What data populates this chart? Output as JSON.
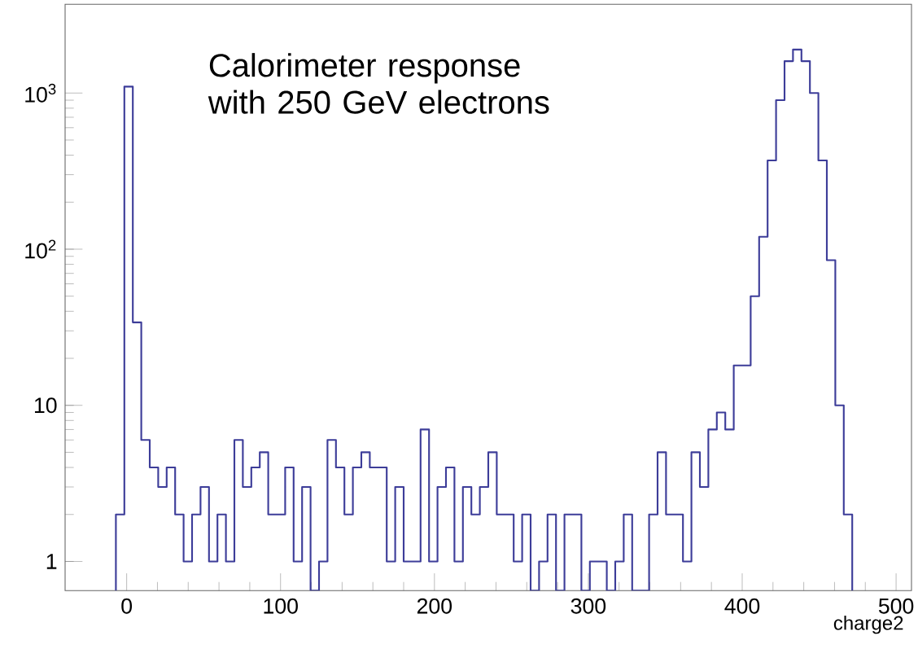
{
  "chart_data": {
    "type": "histogram",
    "xlabel": "charge2",
    "annotations": [
      "Calorimeter response with 250 GeV electrons"
    ],
    "color": "#3d3d99",
    "log": "y",
    "xlim": [
      -40,
      510
    ],
    "xticks": [
      0,
      100,
      200,
      300,
      400,
      500
    ],
    "ylim": [
      0.65,
      3700
    ],
    "yticks": [
      1,
      10,
      {
        "value": 100,
        "label": "10$^{2}$"
      },
      {
        "value": 1000,
        "label": "10$^{3}$"
      }
    ],
    "bins": [
      -7,
      -1.5,
      4,
      9.5,
      15,
      20.5,
      26,
      31.5,
      37,
      42.5,
      48,
      53.5,
      59,
      64.5,
      70,
      75.5,
      81,
      86.5,
      92,
      97.5,
      103,
      108.5,
      114,
      119.5,
      125,
      130.5,
      136,
      141.5,
      147,
      152.5,
      158,
      163.5,
      169,
      174.5,
      180,
      185.5,
      191,
      196.5,
      202,
      207.5,
      213,
      218.5,
      224,
      229.5,
      235,
      240.5,
      246,
      251.5,
      257,
      262.5,
      268,
      273.5,
      279,
      284.5,
      290,
      295.5,
      301,
      306.5,
      312,
      317.5,
      323,
      328.5,
      334,
      339.5,
      345,
      350.5,
      356,
      361.5,
      367,
      372.5,
      378,
      383.5,
      389,
      394.5,
      400,
      405.5,
      411,
      416.5,
      422,
      427.5,
      433,
      438.5,
      444,
      449.5,
      455,
      460.5,
      466,
      471.5
    ],
    "values": [
      2,
      1100,
      34,
      6,
      4,
      3,
      4,
      2,
      1,
      2,
      3,
      1,
      2,
      1,
      6,
      3,
      4,
      5,
      2,
      2,
      4,
      1,
      3,
      null,
      1,
      6,
      4,
      2,
      4,
      5,
      4,
      4,
      1,
      3,
      1,
      1,
      7,
      1,
      3,
      4,
      1,
      3,
      2,
      3,
      5,
      2,
      2,
      1,
      2,
      null,
      1,
      2,
      null,
      2,
      2,
      null,
      1,
      1,
      null,
      1,
      2,
      null,
      null,
      2,
      5,
      2,
      2,
      1,
      5,
      3,
      7,
      9,
      7,
      18,
      18,
      50,
      120,
      370,
      900,
      1600,
      1900,
      1600,
      1000,
      370,
      85,
      10,
      2
    ]
  }
}
